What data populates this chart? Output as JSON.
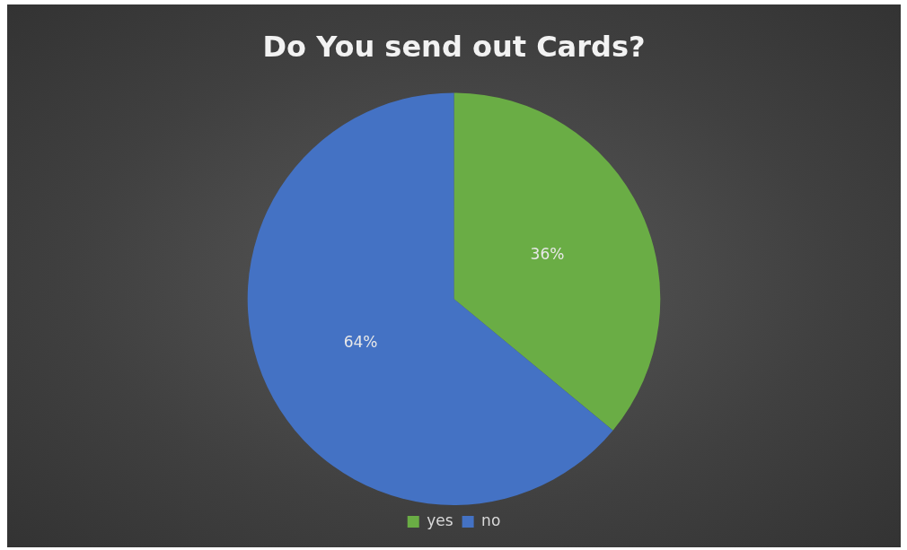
{
  "chart_data": {
    "type": "pie",
    "title": "Do You send out Cards?",
    "categories": [
      "yes",
      "no"
    ],
    "values": [
      36,
      64
    ],
    "colors": [
      "#6aad45",
      "#4472c4"
    ],
    "value_labels": [
      "36%",
      "64%"
    ],
    "legend": "bottom"
  }
}
